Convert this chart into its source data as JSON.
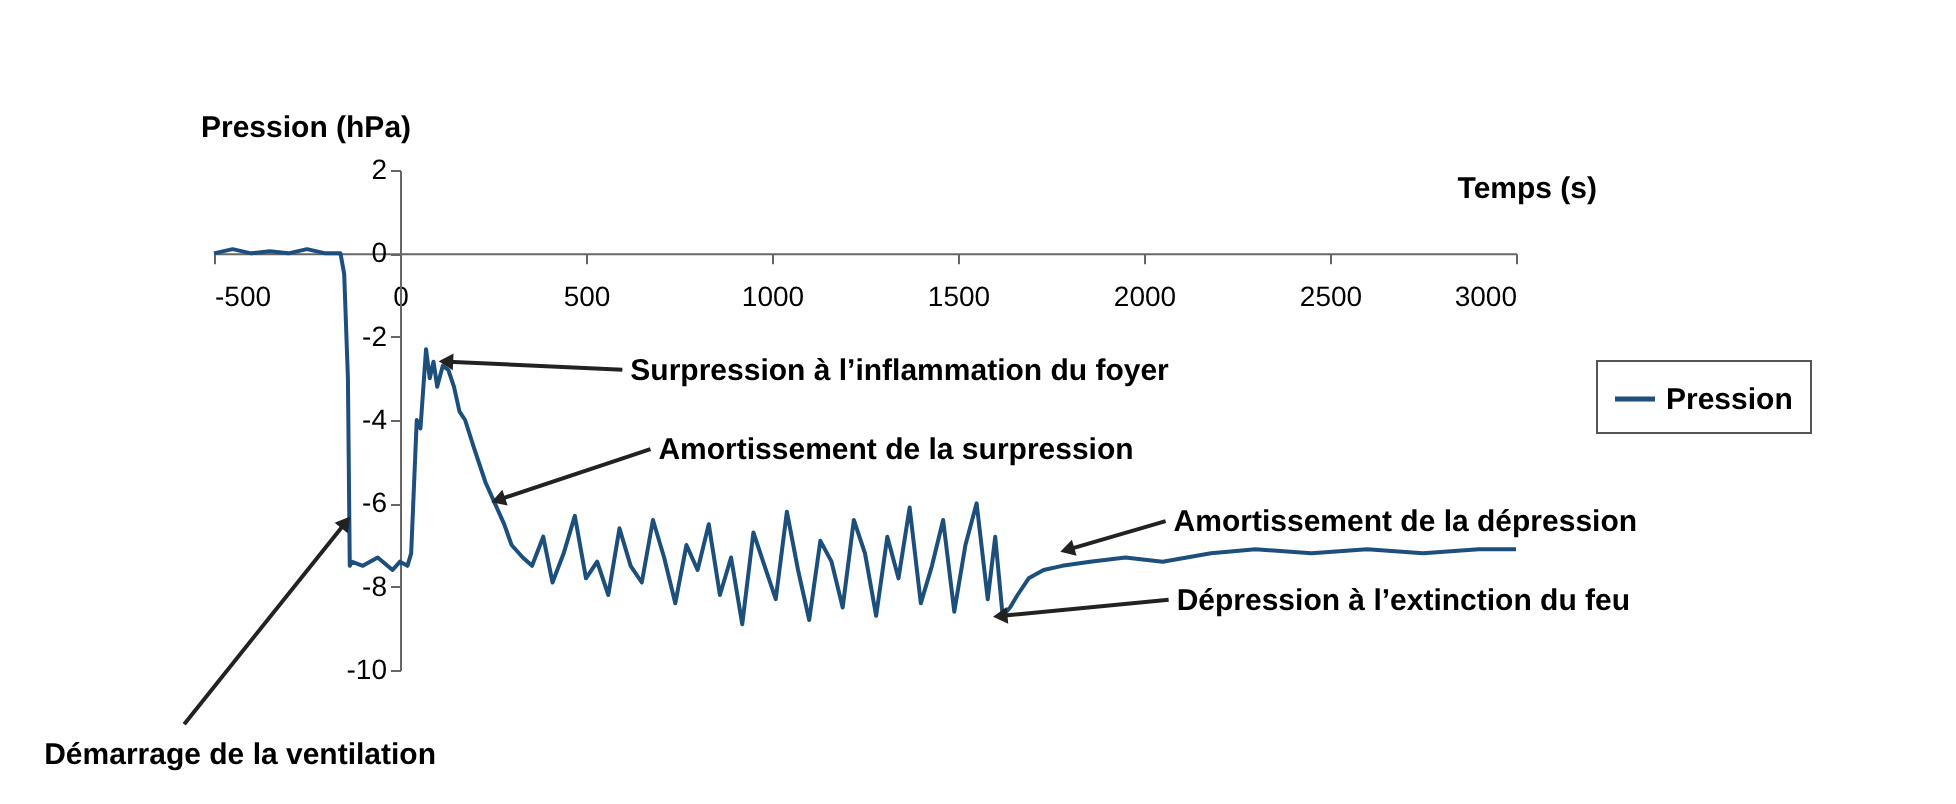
{
  "chart_data": {
    "type": "line",
    "xlabel": "Temps (s)",
    "ylabel": "Pression (hPa)",
    "x": [
      -500,
      -450,
      -400,
      -350,
      -300,
      -250,
      -200,
      -160,
      -150,
      -140,
      -135,
      -130,
      -100,
      -60,
      -20,
      0,
      20,
      30,
      45,
      55,
      70,
      80,
      90,
      100,
      115,
      130,
      145,
      160,
      175,
      200,
      230,
      255,
      280,
      300,
      330,
      355,
      385,
      410,
      440,
      470,
      500,
      530,
      560,
      590,
      620,
      650,
      680,
      710,
      740,
      770,
      800,
      830,
      860,
      890,
      920,
      950,
      980,
      1010,
      1040,
      1070,
      1100,
      1130,
      1160,
      1190,
      1220,
      1250,
      1280,
      1310,
      1340,
      1370,
      1400,
      1430,
      1460,
      1490,
      1520,
      1550,
      1580,
      1600,
      1620,
      1640,
      1660,
      1690,
      1730,
      1780,
      1855,
      1950,
      2050,
      2180,
      2300,
      2450,
      2600,
      2750,
      2900,
      3000
    ],
    "series": [
      {
        "name": "Pression",
        "color": "#1d4f7c",
        "values": [
          0,
          0.1,
          0,
          0.05,
          0,
          0.1,
          0,
          0,
          -0.5,
          -3,
          -7.5,
          -7.4,
          -7.5,
          -7.3,
          -7.6,
          -7.4,
          -7.5,
          -7.2,
          -4,
          -4.2,
          -2.3,
          -3,
          -2.6,
          -3.2,
          -2.7,
          -2.8,
          -3.2,
          -3.8,
          -4,
          -4.7,
          -5.5,
          -6,
          -6.5,
          -7,
          -7.3,
          -7.5,
          -6.8,
          -7.9,
          -7.2,
          -6.3,
          -7.8,
          -7.4,
          -8.2,
          -6.6,
          -7.5,
          -7.9,
          -6.4,
          -7.3,
          -8.4,
          -7,
          -7.6,
          -6.5,
          -8.2,
          -7.3,
          -8.9,
          -6.7,
          -7.5,
          -8.3,
          -6.2,
          -7.6,
          -8.8,
          -6.9,
          -7.4,
          -8.5,
          -6.4,
          -7.2,
          -8.7,
          -6.8,
          -7.8,
          -6.1,
          -8.4,
          -7.5,
          -6.4,
          -8.6,
          -7,
          -6,
          -8.3,
          -6.8,
          -8.7,
          -8.5,
          -8.2,
          -7.8,
          -7.6,
          -7.5,
          -7.4,
          -7.3,
          -7.4,
          -7.2,
          -7.1,
          -7.2,
          -7.1,
          -7.2,
          -7.1,
          -7.1
        ]
      }
    ],
    "xlim": [
      -500,
      3000
    ],
    "xticks": [
      -500,
      0,
      500,
      1000,
      1500,
      2000,
      2500,
      3000
    ],
    "ylim": [
      -10,
      2
    ],
    "yticks": [
      2,
      0,
      -2,
      -4,
      -6,
      -8,
      -10
    ],
    "legend": "right",
    "grid": false,
    "annotations": [
      {
        "text": "Surpression à l’inflammation du foyer",
        "x": 130,
        "y": -2.6
      },
      {
        "text": "Amortissement de la surpression",
        "x": 270,
        "y": -5.9
      },
      {
        "text": "Amortissement de la dépression",
        "x": 1800,
        "y": -7.1
      },
      {
        "text": "Dépression à l’extinction du feu",
        "x": 1620,
        "y": -8.7
      },
      {
        "text": "Démarrage de la ventilation",
        "x": -150,
        "y": -6.5
      }
    ]
  }
}
